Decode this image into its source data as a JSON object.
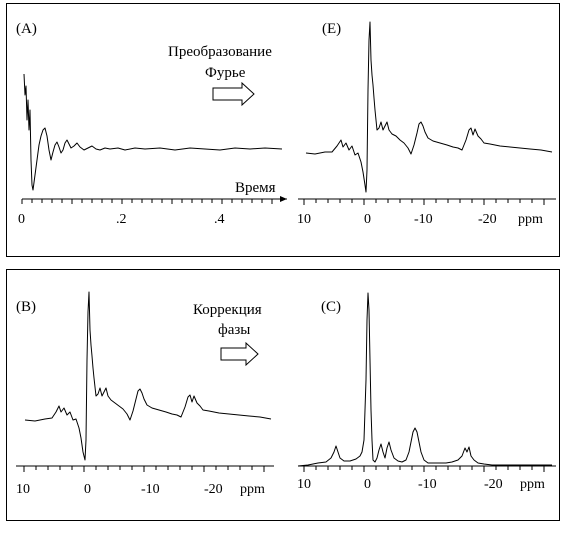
{
  "panels": {
    "A": {
      "label": "(A)",
      "axis_title": "Время",
      "ticks": [
        "0",
        ".2",
        ".4"
      ]
    },
    "E": {
      "label": "(E)",
      "ticks": [
        "10",
        "0",
        "-10",
        "-20"
      ],
      "unit": "ppm"
    },
    "B": {
      "label": "(B)",
      "ticks": [
        "10",
        "0",
        "-10",
        "-20"
      ],
      "unit": "ppm"
    },
    "C": {
      "label": "(C)",
      "ticks": [
        "10",
        "0",
        "-10",
        "-20"
      ],
      "unit": "ppm"
    }
  },
  "arrows": {
    "fourier": {
      "line1": "Преобразование",
      "line2": "Фурье"
    },
    "phase": {
      "line1": "Коррекция",
      "line2": "фазы"
    }
  }
}
